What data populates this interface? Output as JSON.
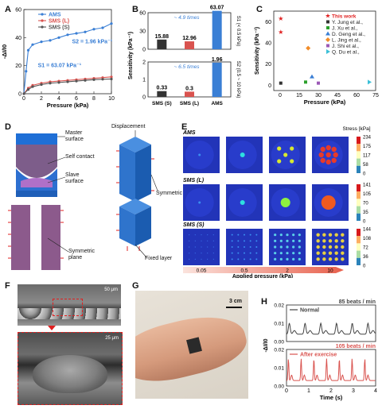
{
  "panels": {
    "A": "A",
    "B": "B",
    "C": "C",
    "D": "D",
    "E": "E",
    "F": "F",
    "G": "G",
    "H": "H"
  },
  "chart_data": [
    {
      "panel": "A",
      "type": "line",
      "xlabel": "Pressure (kPa)",
      "ylabel": "-ΔI/I0",
      "xlim": [
        0,
        10
      ],
      "ylim": [
        0,
        60
      ],
      "xticks": [
        0,
        2,
        4,
        6,
        8,
        10
      ],
      "yticks": [
        0,
        20,
        40,
        60
      ],
      "legend": "top-center",
      "annotations": [
        "S2 = 1.96 kPa⁻¹",
        "S1 = 63.07 kPa⁻¹"
      ],
      "series": [
        {
          "name": "AMS",
          "color": "#3a7fd5",
          "x": [
            0,
            0.25,
            0.5,
            1,
            2,
            3,
            4,
            5,
            6,
            7,
            8,
            9,
            10
          ],
          "y": [
            0,
            16,
            31,
            35,
            37,
            38,
            40,
            42,
            43,
            44,
            46,
            47,
            50
          ]
        },
        {
          "name": "SMS (L)",
          "color": "#d9534f",
          "x": [
            0,
            0.5,
            1,
            2,
            3,
            4,
            5,
            6,
            7,
            8,
            9,
            10
          ],
          "y": [
            0,
            4,
            6,
            7.5,
            8.5,
            9,
            9.5,
            10,
            10.5,
            11,
            11.5,
            12
          ]
        },
        {
          "name": "SMS (S)",
          "color": "#555555",
          "x": [
            0,
            0.5,
            1,
            2,
            3,
            4,
            5,
            6,
            7,
            8,
            9,
            10
          ],
          "y": [
            0,
            3,
            5,
            6.5,
            7.5,
            8,
            8.5,
            9,
            9.5,
            10,
            10.3,
            10.5
          ]
        }
      ]
    },
    {
      "panel": "B",
      "type": "bar",
      "categories": [
        "SMS (S)",
        "SMS (L)",
        "AMS"
      ],
      "ylabel": "Sensitivity (kPa⁻¹)",
      "top": {
        "values": [
          15.88,
          12.96,
          63.07
        ],
        "ylim": [
          0,
          60
        ],
        "yticks": [
          0,
          30,
          60
        ],
        "right_label": "S1 (< 0.5 kPa)",
        "annotation": "~ 4.9 times"
      },
      "bottom": {
        "values": [
          0.33,
          0.3,
          1.96
        ],
        "ylim": [
          0,
          2
        ],
        "yticks": [
          0,
          1,
          2
        ],
        "right_label": "S2 (0.5 ~ 10 kPa)",
        "annotation": "~ 6.5 times"
      },
      "colors": [
        "#333333",
        "#d9534f",
        "#3a7fd5"
      ]
    },
    {
      "panel": "C",
      "type": "scatter",
      "xlabel": "Pressure (kPa)",
      "ylabel": "Sensitivity (kPa⁻¹)",
      "xlim": [
        -5,
        75
      ],
      "ylim": [
        -5,
        70
      ],
      "xticks": [
        0,
        15,
        30,
        45,
        60,
        75
      ],
      "yticks": [
        0,
        20,
        40,
        60
      ],
      "legend": "top-right",
      "series": [
        {
          "name": "This work",
          "color": "#e02020",
          "marker": "star",
          "x": [
            0.5,
            0.5
          ],
          "y": [
            63,
            50
          ]
        },
        {
          "name": "Y. Jung et al.,",
          "color": "#333333",
          "marker": "square",
          "x": [
            0.5
          ],
          "y": [
            2
          ]
        },
        {
          "name": "J. Xu et al.,",
          "color": "#2ca02c",
          "marker": "square",
          "x": [
            20
          ],
          "y": [
            3
          ]
        },
        {
          "name": "D. Geng et al.,",
          "color": "#3a7fd5",
          "marker": "triangle",
          "x": [
            25
          ],
          "y": [
            8
          ]
        },
        {
          "name": "L. Jing et al.,",
          "color": "#f28c28",
          "marker": "diamond",
          "x": [
            22
          ],
          "y": [
            35
          ]
        },
        {
          "name": "J. Shi et al.,",
          "color": "#9b59b6",
          "marker": "square",
          "x": [
            30
          ],
          "y": [
            2
          ]
        },
        {
          "name": "Q. Du et al.,",
          "color": "#3cc0d8",
          "marker": "triangle-right",
          "x": [
            70
          ],
          "y": [
            3
          ]
        }
      ]
    },
    {
      "panel": "H",
      "type": "line",
      "xlabel": "Time (s)",
      "ylabel": "-ΔI/I0",
      "top": {
        "legend": "Normal",
        "rate": "85 beats / min",
        "ylim": [
          0,
          0.02
        ],
        "yticks": [
          0.0,
          0.01,
          0.02
        ],
        "color": "#444444"
      },
      "bottom": {
        "legend": "After exercise",
        "rate": "105 beats / min",
        "ylim": [
          0,
          0.02
        ],
        "yticks": [
          0.0,
          0.01,
          0.02
        ],
        "color": "#d9534f"
      },
      "xticks": [
        0,
        1,
        2,
        3,
        4
      ],
      "xlim": [
        0,
        4
      ]
    }
  ],
  "panelD": {
    "labels": [
      "Master surface",
      "Self contact",
      "Slave surface",
      "Symmetric plane",
      "Displacement",
      "Symmetric",
      "Fixed layer"
    ]
  },
  "panelE": {
    "rows": [
      "AMS",
      "SMS (L)",
      "SMS (S)"
    ],
    "colorbar_title": "Stress [kPa]",
    "colorbars": [
      [
        "234",
        "175",
        "117",
        "58",
        "0"
      ],
      [
        "141",
        "105",
        "70",
        "35",
        "0"
      ],
      [
        "144",
        "108",
        "72",
        "36",
        "0"
      ]
    ],
    "pressures": [
      "0.05",
      "0.5",
      "2",
      "10"
    ],
    "xlabel": "Applied pressure (kPa)"
  },
  "panelF": {
    "scale_top": "50 μm",
    "scale_bottom": "25 μm"
  },
  "panelG": {
    "scale": "3 cm"
  }
}
